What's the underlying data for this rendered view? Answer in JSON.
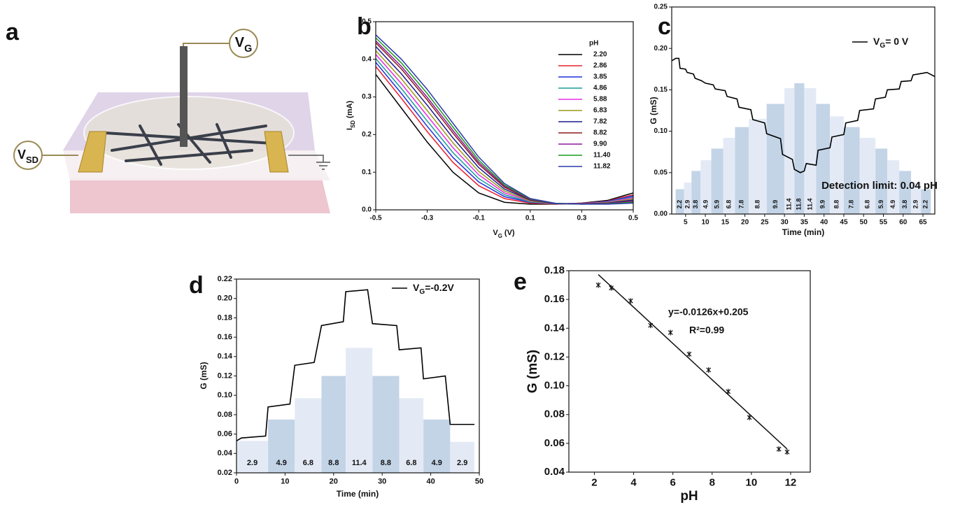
{
  "panel_labels": [
    "a",
    "b",
    "c",
    "d",
    "e"
  ],
  "device": {
    "gate": [
      {
        "text": "V"
      },
      {
        "text": "G",
        "script": "sub"
      }
    ],
    "source_drain": [
      {
        "text": "V"
      },
      {
        "text": "SD",
        "script": "sub"
      }
    ]
  },
  "chart_data": [
    {
      "type": "line",
      "xlabel": [
        {
          "text": "V"
        },
        {
          "text": "G",
          "script": "sub"
        },
        {
          "text": " (V)"
        }
      ],
      "ylabel": [
        {
          "text": "I"
        },
        {
          "text": "SD",
          "script": "sub"
        },
        {
          "text": " (mA)"
        }
      ],
      "x": [
        -0.5,
        -0.4,
        -0.3,
        -0.2,
        -0.1,
        0,
        0.1,
        0.2,
        0.3,
        0.4,
        0.5
      ],
      "xlim": [
        -0.5,
        0.5
      ],
      "xticks": [
        -0.5,
        -0.3,
        -0.1,
        0.1,
        0.3,
        0.5
      ],
      "ylim": [
        0,
        0.5
      ],
      "yticks": [
        {
          "value": 0,
          "label": "0.0"
        },
        0.1,
        0.2,
        0.3,
        0.4,
        0.5
      ],
      "legend_title": "pH",
      "series": [
        {
          "name": "2.20",
          "color": "#000000",
          "values": [
            0.36,
            0.27,
            0.18,
            0.1,
            0.045,
            0.02,
            0.015,
            0.015,
            0.018,
            0.025,
            0.045
          ]
        },
        {
          "name": "2.86",
          "color": "#e8202a",
          "values": [
            0.381,
            0.296,
            0.208,
            0.126,
            0.064,
            0.03,
            0.018,
            0.015,
            0.017,
            0.023,
            0.04
          ]
        },
        {
          "name": "3.85",
          "color": "#1f2fe0",
          "values": [
            0.392,
            0.309,
            0.222,
            0.139,
            0.074,
            0.035,
            0.02,
            0.016,
            0.017,
            0.022,
            0.037
          ]
        },
        {
          "name": "4.86",
          "color": "#1a9a9a",
          "values": [
            0.402,
            0.322,
            0.236,
            0.152,
            0.083,
            0.04,
            0.021,
            0.016,
            0.017,
            0.021,
            0.034
          ]
        },
        {
          "name": "5.88",
          "color": "#e62ee0",
          "values": [
            0.413,
            0.335,
            0.25,
            0.165,
            0.093,
            0.045,
            0.023,
            0.016,
            0.017,
            0.02,
            0.032
          ]
        },
        {
          "name": "6.83",
          "color": "#9a9a1a",
          "values": [
            0.423,
            0.348,
            0.264,
            0.178,
            0.102,
            0.05,
            0.024,
            0.016,
            0.016,
            0.019,
            0.029
          ]
        },
        {
          "name": "7.82",
          "color": "#1a1a8c",
          "values": [
            0.434,
            0.361,
            0.278,
            0.191,
            0.112,
            0.055,
            0.026,
            0.016,
            0.016,
            0.018,
            0.026
          ]
        },
        {
          "name": "8.82",
          "color": "#8c1a1a",
          "values": [
            0.444,
            0.374,
            0.292,
            0.204,
            0.121,
            0.06,
            0.027,
            0.017,
            0.016,
            0.017,
            0.023
          ]
        },
        {
          "name": "9.90",
          "color": "#8c1a9a",
          "values": [
            0.449,
            0.381,
            0.299,
            0.211,
            0.126,
            0.063,
            0.028,
            0.017,
            0.015,
            0.017,
            0.022
          ]
        },
        {
          "name": "11.40",
          "color": "#1a9a1a",
          "values": [
            0.457,
            0.39,
            0.309,
            0.22,
            0.132,
            0.066,
            0.029,
            0.017,
            0.015,
            0.016,
            0.02
          ]
        },
        {
          "name": "11.82",
          "color": "#2a3aa8",
          "values": [
            0.465,
            0.4,
            0.32,
            0.23,
            0.14,
            0.07,
            0.03,
            0.017,
            0.015,
            0.015,
            0.018
          ]
        }
      ]
    },
    {
      "type": "combo",
      "xlabel": "Time (min)",
      "ylabel": "G (mS)",
      "xlim": [
        1.5,
        68
      ],
      "xticks": [
        5,
        10,
        15,
        20,
        25,
        30,
        35,
        40,
        45,
        50,
        55,
        60,
        65
      ],
      "ylim": [
        0,
        0.25
      ],
      "yticks": [
        {
          "value": 0,
          "label": "0.00"
        },
        0.05,
        {
          "value": 0.1,
          "label": "0.10"
        },
        0.15,
        {
          "value": 0.2,
          "label": "0.20"
        },
        0.25
      ],
      "categories": [
        "2.2",
        "2.9",
        "3.8",
        "4.9",
        "5.9",
        "6.8",
        "7.8",
        "8.8",
        "9.9",
        "11.4",
        "11.8",
        "11.4",
        "9.9",
        "8.8",
        "7.8",
        "6.8",
        "5.9",
        "4.9",
        "3.8",
        "2.9",
        "2.2"
      ],
      "bins": [
        2.5,
        4.6,
        6.5,
        8.8,
        11.5,
        14.5,
        17.5,
        21,
        25.5,
        30,
        32.5,
        35,
        38,
        41.5,
        45,
        49,
        53,
        56,
        59,
        62,
        64.5,
        67
      ],
      "values": [
        0.03,
        0.038,
        0.052,
        0.065,
        0.079,
        0.092,
        0.105,
        0.115,
        0.133,
        0.152,
        0.158,
        0.152,
        0.133,
        0.118,
        0.105,
        0.092,
        0.079,
        0.065,
        0.052,
        0.038,
        0.03
      ],
      "bar_colors": [
        "#c3d4e7",
        "#e4eaf5"
      ],
      "line": {
        "name": [
          {
            "text": "V"
          },
          {
            "text": "G",
            "script": "sub"
          },
          {
            "text": "= 0 V"
          }
        ],
        "color": "#000000",
        "x": [
          1.5,
          2.5,
          3.3,
          3.6,
          5,
          5.4,
          7,
          7.4,
          9,
          10,
          12,
          12.5,
          15,
          15.5,
          18,
          18.5,
          21.5,
          22,
          25,
          25.5,
          29,
          29.5,
          32,
          32.5,
          34,
          35,
          35.5,
          38,
          38.5,
          41.5,
          42,
          45,
          45.5,
          48.5,
          49,
          52.5,
          53,
          55.5,
          56,
          59,
          59.5,
          62,
          62.5,
          65,
          66,
          68
        ],
        "values": [
          0.185,
          0.188,
          0.188,
          0.176,
          0.175,
          0.171,
          0.169,
          0.164,
          0.161,
          0.158,
          0.156,
          0.151,
          0.149,
          0.142,
          0.139,
          0.129,
          0.126,
          0.114,
          0.11,
          0.097,
          0.091,
          0.072,
          0.066,
          0.054,
          0.05,
          0.052,
          0.061,
          0.059,
          0.077,
          0.08,
          0.093,
          0.096,
          0.11,
          0.113,
          0.125,
          0.127,
          0.139,
          0.141,
          0.15,
          0.151,
          0.16,
          0.161,
          0.168,
          0.17,
          0.171,
          0.166
        ]
      },
      "annotation": "Detection limit: 0.04 pH"
    },
    {
      "type": "combo",
      "xlabel": "Time (min)",
      "ylabel": "G (mS)",
      "xlim": [
        0,
        50
      ],
      "xticks": [
        0,
        10,
        20,
        30,
        40,
        50
      ],
      "ylim": [
        0.02,
        0.22
      ],
      "yticks": [
        0.02,
        0.04,
        0.06,
        0.08,
        {
          "value": 0.1,
          "label": "0.10"
        },
        0.12,
        0.14,
        0.16,
        0.18,
        {
          "value": 0.2,
          "label": "0.20"
        },
        0.22
      ],
      "categories": [
        "2.9",
        "4.9",
        "6.8",
        "8.8",
        "11.4",
        "8.8",
        "6.8",
        "4.9",
        "2.9"
      ],
      "bins": [
        0,
        6.5,
        12,
        17.5,
        22.5,
        28,
        33.5,
        38.5,
        44,
        49
      ],
      "values": [
        0.053,
        0.075,
        0.097,
        0.12,
        0.149,
        0.12,
        0.097,
        0.075,
        0.052
      ],
      "bar_colors": [
        "#e4eaf5",
        "#c3d4e7"
      ],
      "line": {
        "name": [
          {
            "text": "V"
          },
          {
            "text": "G",
            "script": "sub"
          },
          {
            "text": "=-0.2V"
          }
        ],
        "color": "#000000",
        "x": [
          0,
          1,
          6,
          6.5,
          11,
          12,
          16,
          17.5,
          22,
          22.5,
          27,
          28,
          33,
          33.5,
          38,
          38.5,
          43,
          44,
          49
        ],
        "values": [
          0.053,
          0.056,
          0.058,
          0.088,
          0.091,
          0.131,
          0.134,
          0.172,
          0.176,
          0.207,
          0.209,
          0.174,
          0.172,
          0.147,
          0.149,
          0.117,
          0.12,
          0.07,
          0.07
        ]
      }
    },
    {
      "type": "scatter",
      "xlabel": "pH",
      "ylabel": "G (mS)",
      "xlim": [
        0.7,
        13
      ],
      "xticks": [
        2,
        4,
        6,
        8,
        10,
        12
      ],
      "ylim": [
        0.04,
        0.18
      ],
      "yticks": [
        0.04,
        0.06,
        0.08,
        {
          "value": 0.1,
          "label": "0.10"
        },
        0.12,
        0.14,
        0.16,
        0.18
      ],
      "x": [
        2.2,
        2.86,
        3.85,
        4.86,
        5.88,
        6.83,
        7.82,
        8.82,
        9.9,
        11.4,
        11.82
      ],
      "values": [
        0.17,
        0.168,
        0.159,
        0.142,
        0.137,
        0.122,
        0.111,
        0.096,
        0.078,
        0.056,
        0.054
      ],
      "fit": {
        "equation": "y=-0.0126x+0.205",
        "r2": "R²=0.99",
        "slope": -0.0126,
        "intercept": 0.205
      }
    }
  ]
}
